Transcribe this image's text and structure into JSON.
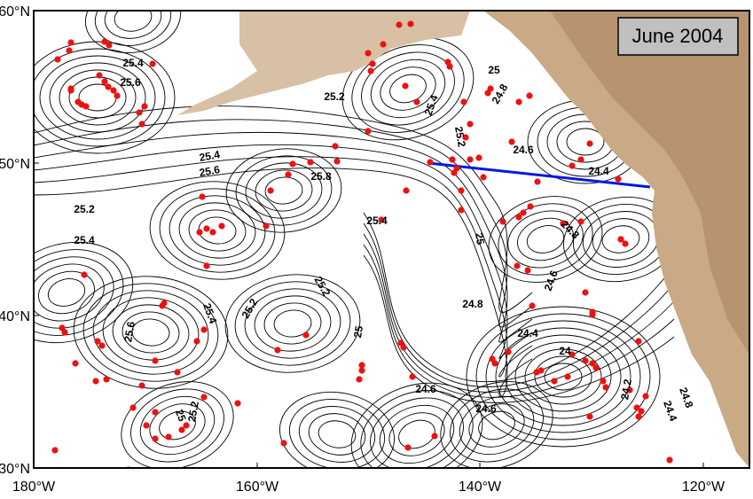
{
  "map": {
    "title": "June 2004",
    "lat_labels": [
      "60°N",
      "50°N",
      "40°N",
      "30°N"
    ],
    "lon_labels": [
      "180°W",
      "160°W",
      "140°W",
      "120°W"
    ],
    "contour_labels": [
      "25.4",
      "25.6",
      "25.2",
      "25.4",
      "25.2",
      "25",
      "24.8",
      "24.6",
      "24.4",
      "25.4",
      "25.6",
      "25.8",
      "25.4",
      "25",
      "25.2",
      "25.4",
      "24.8",
      "24.6",
      "25.2",
      "25.2",
      "25.4",
      "25.6",
      "25",
      "24.8",
      "24.4",
      "24",
      "24.2",
      "24.6",
      "24.6",
      "25",
      "25.2",
      "24.4",
      "24.8"
    ]
  }
}
